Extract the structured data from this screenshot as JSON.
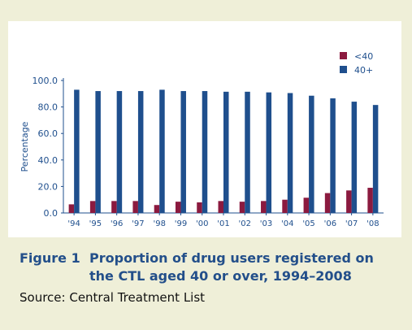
{
  "figure": {
    "label": "Figure 1",
    "title_line1": "Proportion of drug users registered on",
    "title_line2": "the CTL aged 40 or over, 1994–2008",
    "source": "Source: Central Treatment List"
  },
  "chart_data": {
    "type": "bar",
    "categories": [
      "'94",
      "'95",
      "'96",
      "'97",
      "'98",
      "'99",
      "'00",
      "'01",
      "'02",
      "'03",
      "'04",
      "'05",
      "'06",
      "'07",
      "'08"
    ],
    "series": [
      {
        "name": "<40",
        "color": "#8b1a3f",
        "values": [
          6.5,
          9,
          9,
          9,
          6,
          8.5,
          8,
          9,
          8.5,
          9,
          10,
          11.5,
          15,
          17,
          19
        ]
      },
      {
        "name": "40+",
        "color": "#1f4f8d",
        "values": [
          93,
          92,
          92,
          92,
          93,
          92,
          92,
          91.5,
          91.5,
          91,
          90.5,
          88.5,
          86.5,
          84,
          81.5
        ]
      }
    ],
    "ylabel": "Percentage",
    "ylim": [
      0,
      100
    ],
    "yticks": [
      "0.0",
      "20.0",
      "40.0",
      "60.0",
      "80.0",
      "100.0"
    ],
    "legend_position": "top-right",
    "grid": false
  }
}
